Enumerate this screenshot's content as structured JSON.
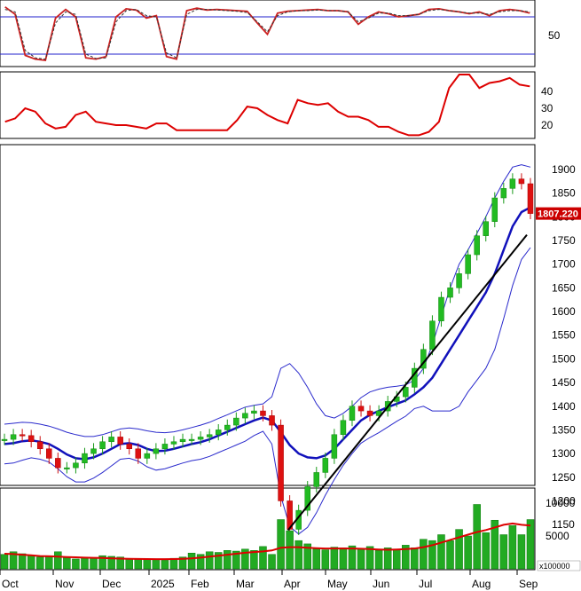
{
  "chart_data": [
    {
      "type": "line",
      "panel": "oscillator",
      "reference_lines": [
        80,
        20
      ],
      "y_ticks": [
        "50"
      ],
      "series": [
        {
          "values": [
            96,
            84,
            18,
            12,
            10,
            78,
            92,
            80,
            14,
            12,
            16,
            80,
            93,
            91,
            78,
            82,
            16,
            12,
            90,
            94,
            91,
            92,
            91,
            90,
            89,
            70,
            52,
            86,
            89,
            90,
            91,
            92,
            90,
            90,
            88,
            68,
            80,
            88,
            85,
            80,
            82,
            84,
            92,
            93,
            90,
            88,
            85,
            88,
            82,
            90,
            92,
            90,
            86
          ]
        },
        {
          "values": [
            92,
            88,
            26,
            14,
            12,
            70,
            88,
            84,
            20,
            13,
            14,
            72,
            90,
            92,
            82,
            80,
            22,
            14,
            84,
            92,
            92,
            91,
            90,
            89,
            87,
            72,
            56,
            82,
            88,
            90,
            90,
            91,
            90,
            90,
            88,
            72,
            78,
            86,
            86,
            82,
            82,
            84,
            90,
            92,
            90,
            88,
            86,
            86,
            84,
            88,
            90,
            90,
            88
          ]
        }
      ]
    },
    {
      "type": "line",
      "panel": "indicator",
      "y_ticks": [
        "40",
        "30",
        "20"
      ],
      "series": [
        {
          "values": [
            22,
            24,
            30,
            28,
            21,
            18,
            19,
            26,
            28,
            22,
            21,
            20,
            20,
            19,
            18,
            21,
            21,
            17,
            17,
            17,
            17,
            17,
            17,
            23,
            31,
            30,
            26,
            23,
            21,
            35,
            33,
            32,
            33,
            28,
            25,
            25,
            23,
            19,
            19,
            16,
            14,
            14,
            16,
            22,
            42,
            50,
            50,
            42,
            45,
            46,
            48,
            44,
            43
          ]
        }
      ]
    },
    {
      "type": "candlestick",
      "panel": "price",
      "y_ticks": [
        "1900",
        "1850",
        "1800",
        "1750",
        "1700",
        "1650",
        "1600",
        "1550",
        "1500",
        "1450",
        "1400",
        "1350",
        "1300",
        "1250",
        "1200",
        "1150"
      ],
      "x_ticks": [
        "Oct",
        "Nov",
        "Dec",
        "2025",
        "Feb",
        "Mar",
        "Apr",
        "May",
        "Jun",
        "Jul",
        "Aug",
        "Sep"
      ],
      "last_price_label": "1807.220",
      "close": [
        1330,
        1340,
        1338,
        1325,
        1310,
        1290,
        1270,
        1270,
        1280,
        1300,
        1310,
        1325,
        1335,
        1320,
        1310,
        1290,
        1300,
        1310,
        1320,
        1325,
        1330,
        1330,
        1335,
        1340,
        1350,
        1360,
        1375,
        1385,
        1390,
        1380,
        1360,
        1200,
        1140,
        1180,
        1230,
        1260,
        1290,
        1340,
        1370,
        1400,
        1390,
        1380,
        1390,
        1410,
        1420,
        1440,
        1480,
        1520,
        1580,
        1630,
        1650,
        1680,
        1720,
        1760,
        1790,
        1840,
        1860,
        1880,
        1870,
        1807
      ],
      "sma": [
        1320,
        1322,
        1326,
        1328,
        1325,
        1320,
        1310,
        1298,
        1290,
        1288,
        1292,
        1300,
        1310,
        1320,
        1322,
        1318,
        1310,
        1305,
        1306,
        1310,
        1315,
        1320,
        1324,
        1330,
        1338,
        1346,
        1354,
        1362,
        1370,
        1376,
        1370,
        1345,
        1318,
        1300,
        1292,
        1290,
        1296,
        1310,
        1330,
        1350,
        1370,
        1382,
        1390,
        1398,
        1405,
        1412,
        1425,
        1440,
        1460,
        1490,
        1520,
        1550,
        1580,
        1610,
        1640,
        1680,
        1730,
        1780,
        1810,
        1820
      ],
      "upper_band": [
        1362,
        1364,
        1366,
        1365,
        1362,
        1358,
        1352,
        1345,
        1340,
        1336,
        1336,
        1340,
        1346,
        1352,
        1354,
        1352,
        1348,
        1345,
        1344,
        1346,
        1350,
        1355,
        1360,
        1366,
        1374,
        1382,
        1390,
        1398,
        1402,
        1405,
        1420,
        1480,
        1490,
        1470,
        1440,
        1405,
        1380,
        1375,
        1385,
        1400,
        1418,
        1430,
        1436,
        1440,
        1442,
        1445,
        1455,
        1480,
        1530,
        1590,
        1650,
        1700,
        1730,
        1765,
        1800,
        1840,
        1875,
        1905,
        1910,
        1905
      ],
      "lower_band": [
        1278,
        1280,
        1286,
        1291,
        1288,
        1282,
        1268,
        1251,
        1240,
        1240,
        1248,
        1260,
        1274,
        1288,
        1290,
        1284,
        1272,
        1265,
        1268,
        1274,
        1280,
        1285,
        1288,
        1294,
        1302,
        1310,
        1318,
        1326,
        1338,
        1347,
        1320,
        1210,
        1146,
        1130,
        1144,
        1175,
        1212,
        1245,
        1275,
        1300,
        1322,
        1334,
        1344,
        1356,
        1368,
        1379,
        1395,
        1400,
        1390,
        1390,
        1390,
        1400,
        1430,
        1455,
        1480,
        1520,
        1585,
        1655,
        1710,
        1735
      ],
      "trendline": [
        [
          1138,
          1762
        ]
      ]
    },
    {
      "type": "bar",
      "panel": "volume",
      "y_ticks": [
        "10000",
        "5000"
      ],
      "multiplier_label": "x100000",
      "values": [
        2200,
        2600,
        2300,
        2000,
        1800,
        2000,
        2600,
        1700,
        1500,
        1600,
        1700,
        2000,
        1900,
        1800,
        1500,
        1400,
        1400,
        1500,
        1300,
        1600,
        1800,
        2400,
        2200,
        2600,
        2500,
        2800,
        2700,
        3000,
        2800,
        3400,
        2200,
        7500,
        5800,
        4300,
        3800,
        3000,
        2900,
        3300,
        3200,
        3500,
        3000,
        3400,
        2800,
        3200,
        3000,
        3600,
        3200,
        4500,
        4300,
        5200,
        4300,
        6000,
        5000,
        9800,
        5500,
        7400,
        5200,
        6600,
        5200,
        7500
      ],
      "ma": [
        2300,
        2250,
        2150,
        2050,
        1950,
        1900,
        1850,
        1800,
        1750,
        1700,
        1680,
        1650,
        1600,
        1560,
        1520,
        1500,
        1480,
        1470,
        1470,
        1490,
        1530,
        1600,
        1700,
        1850,
        2000,
        2150,
        2300,
        2450,
        2550,
        2650,
        2800,
        3200,
        3300,
        3300,
        3200,
        3150,
        3100,
        3100,
        3100,
        3100,
        3050,
        3000,
        2950,
        2900,
        2950,
        3000,
        3100,
        3300,
        3600,
        4000,
        4400,
        4800,
        5200,
        5600,
        5900,
        6300,
        6700,
        6900,
        6700,
        6600
      ]
    }
  ]
}
